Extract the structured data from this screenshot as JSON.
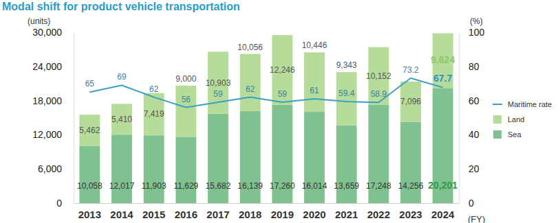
{
  "chart_data": {
    "type": "bar",
    "title": "Modal shift for product vehicle transportation",
    "stacked": true,
    "data_labels": true,
    "legend": "right",
    "grid": false,
    "y_label": "(units)",
    "y2_label": "(%)",
    "x_label": "(FY)",
    "categories": [
      "2013",
      "2014",
      "2015",
      "2016",
      "2017",
      "2018",
      "2019",
      "2020",
      "2021",
      "2022",
      "2023",
      "2024"
    ],
    "series": [
      {
        "name": "Sea",
        "type": "bar",
        "color": "#80c190",
        "values": [
          10058,
          12017,
          11903,
          11629,
          15682,
          16139,
          17260,
          16014,
          13659,
          17248,
          14256,
          20201
        ],
        "value_labels": [
          "10,058",
          "12,017",
          "11,903",
          "11,629",
          "15,682",
          "16,139",
          "17,260",
          "16,014",
          "13,659",
          "17,248",
          "14,256",
          "20,201"
        ]
      },
      {
        "name": "Land",
        "type": "bar",
        "color": "#b5dc98",
        "values": [
          5462,
          5410,
          7419,
          9000,
          10903,
          10056,
          12246,
          10446,
          9343,
          10152,
          7096,
          9624
        ],
        "value_labels": [
          "5,462",
          "5,410",
          "7,419",
          "9,000",
          "10,903",
          "10,056",
          "12,246",
          "10,446",
          "9,343",
          "10,152",
          "7,096",
          "9,624"
        ]
      },
      {
        "name": "Maritime rate",
        "type": "line",
        "axis": "y2",
        "color": "#3a9fc8",
        "values": [
          65,
          69,
          62,
          56,
          59,
          62,
          59,
          61,
          59.4,
          58.9,
          73.2,
          67.7
        ]
      }
    ],
    "ylim": [
      0,
      30000
    ],
    "yticks": [
      0,
      {
        "value": 6000,
        "label": "6,000"
      },
      {
        "value": 12000,
        "label": "12,000"
      },
      {
        "value": 18000,
        "label": "18,000"
      },
      {
        "value": 24000,
        "label": "24,000"
      },
      {
        "value": 30000,
        "label": "30,000"
      }
    ],
    "y2lim": [
      0,
      100
    ],
    "y2ticks": [
      0,
      20,
      40,
      60,
      80,
      100
    ]
  }
}
